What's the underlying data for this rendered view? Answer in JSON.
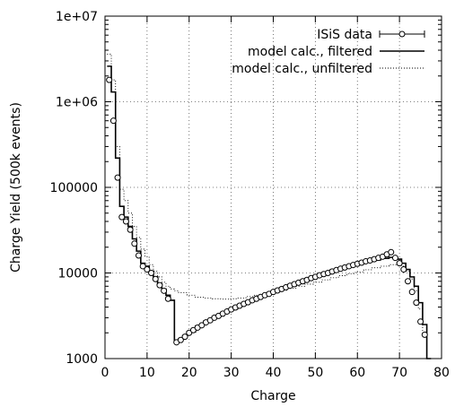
{
  "chart_data": {
    "type": "line",
    "title": "",
    "xlabel": "Charge",
    "ylabel": "Charge Yield (500k events)",
    "xlim": [
      0,
      80
    ],
    "ylim": [
      1000,
      10000000
    ],
    "y_scale": "log",
    "grid": true,
    "legend_position": "top-right",
    "x_ticks": [
      0,
      10,
      20,
      30,
      40,
      50,
      60,
      70,
      80
    ],
    "x_tick_labels": [
      "0",
      "10",
      "20",
      "30",
      "40",
      "50",
      "60",
      "70",
      "80"
    ],
    "y_ticks": [
      1000,
      10000,
      100000,
      1000000,
      10000000
    ],
    "y_tick_labels": [
      "1000",
      "10000",
      "100000",
      "1e+06",
      "1e+07"
    ],
    "series": [
      {
        "name": "ISiS data",
        "style": "points-with-errorbars",
        "color": "#000000",
        "x": [
          1,
          2,
          3,
          4,
          5,
          6,
          7,
          8,
          9,
          10,
          11,
          12,
          13,
          14,
          15,
          17,
          18,
          19,
          20,
          21,
          22,
          23,
          24,
          25,
          26,
          27,
          28,
          29,
          30,
          31,
          32,
          33,
          34,
          35,
          36,
          37,
          38,
          39,
          40,
          41,
          42,
          43,
          44,
          45,
          46,
          47,
          48,
          49,
          50,
          51,
          52,
          53,
          54,
          55,
          56,
          57,
          58,
          59,
          60,
          61,
          62,
          63,
          64,
          65,
          66,
          67,
          68,
          69,
          70,
          71,
          72,
          73,
          74,
          75,
          76
        ],
        "y": [
          1800000,
          600000,
          130000,
          45000,
          40000,
          32000,
          22000,
          16000,
          12000,
          11000,
          10000,
          8500,
          7200,
          6200,
          5000,
          1550,
          1650,
          1800,
          2000,
          2150,
          2300,
          2450,
          2650,
          2800,
          3000,
          3150,
          3350,
          3550,
          3750,
          3950,
          4150,
          4350,
          4550,
          4800,
          5000,
          5250,
          5500,
          5700,
          6000,
          6250,
          6500,
          6800,
          7100,
          7400,
          7700,
          8000,
          8300,
          8700,
          9000,
          9400,
          9700,
          10000,
          10400,
          10800,
          11200,
          11600,
          12000,
          12400,
          12800,
          13200,
          13700,
          14000,
          14500,
          15000,
          15500,
          16500,
          17500,
          15000,
          13000,
          11000,
          8000,
          6000,
          4500,
          2700,
          1900
        ]
      },
      {
        "name": "model calc., filtered",
        "style": "steps-solid",
        "color": "#000000",
        "x": [
          1,
          2,
          3,
          4,
          5,
          6,
          7,
          8,
          9,
          10,
          11,
          12,
          13,
          14,
          15,
          16,
          17,
          18,
          19,
          20,
          22,
          24,
          26,
          28,
          30,
          32,
          34,
          36,
          38,
          40,
          42,
          44,
          46,
          48,
          50,
          52,
          54,
          56,
          58,
          60,
          62,
          64,
          66,
          68,
          70,
          71,
          72,
          73,
          74,
          75,
          76,
          77
        ],
        "y": [
          2600000,
          1300000,
          220000,
          60000,
          45000,
          35000,
          25000,
          18000,
          13000,
          12000,
          10500,
          9000,
          7500,
          6500,
          5500,
          4800,
          1600,
          1700,
          1850,
          2050,
          2400,
          2750,
          3100,
          3450,
          3800,
          4250,
          4700,
          5150,
          5650,
          6150,
          6700,
          7300,
          7900,
          8600,
          9300,
          10000,
          10800,
          11500,
          12200,
          12900,
          13600,
          14200,
          14800,
          15200,
          14500,
          13000,
          11000,
          9000,
          7000,
          4500,
          2500,
          1000
        ]
      },
      {
        "name": "model calc., unfiltered",
        "style": "steps-dotted",
        "color": "#000000",
        "x": [
          1,
          2,
          3,
          4,
          5,
          6,
          7,
          8,
          9,
          10,
          11,
          12,
          13,
          14,
          15,
          16,
          17,
          18,
          20,
          22,
          24,
          26,
          28,
          30,
          32,
          34,
          36,
          38,
          40,
          42,
          44,
          46,
          48,
          50,
          52,
          54,
          56,
          58,
          60,
          62,
          64,
          66,
          68,
          70,
          71,
          72,
          73,
          74,
          75,
          76
        ],
        "y": [
          3600000,
          1800000,
          300000,
          95000,
          70000,
          50000,
          35000,
          26000,
          19000,
          15500,
          12500,
          10500,
          9000,
          7800,
          7000,
          6500,
          6200,
          5900,
          5500,
          5200,
          5100,
          5000,
          4950,
          5000,
          5100,
          5300,
          5500,
          5700,
          6000,
          6300,
          6600,
          7000,
          7400,
          7800,
          8300,
          8800,
          9300,
          9800,
          10300,
          10900,
          11500,
          12000,
          12500,
          12800,
          12000,
          10500,
          8500,
          6200,
          3800,
          1900
        ]
      }
    ]
  }
}
